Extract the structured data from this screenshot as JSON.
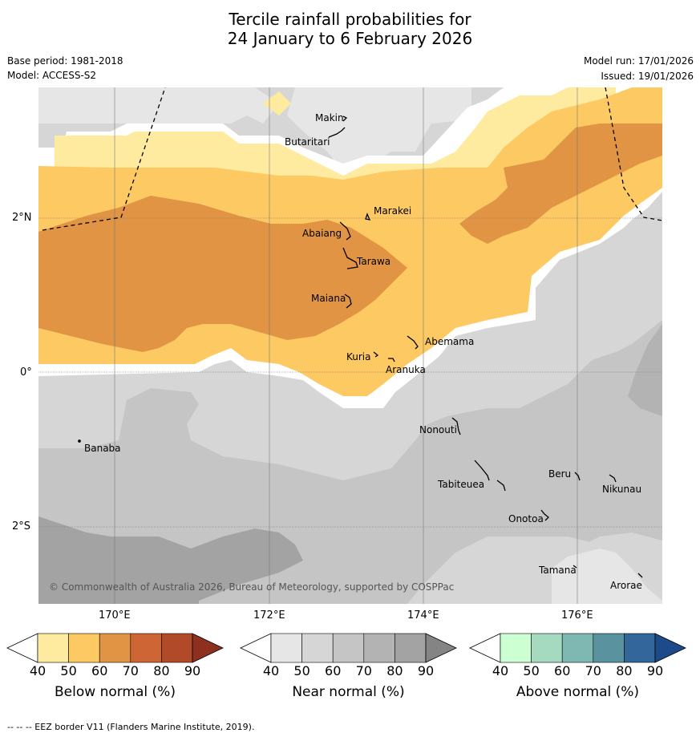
{
  "title_line1": "Tercile rainfall probabilities for",
  "title_line2": "24 January to 6 February 2026",
  "meta": {
    "base_period": "Base period: 1981-2018",
    "model": "Model: ACCESS-S2",
    "model_run": "Model run: 17/01/2026",
    "issued": "Issued: 19/01/2026"
  },
  "map": {
    "lat_labels": [
      "2°N",
      "0°",
      "2°S"
    ],
    "lon_labels": [
      "170°E",
      "172°E",
      "174°E",
      "176°E"
    ],
    "places": {
      "makin": "Makin",
      "butaritari": "Butaritari",
      "marakei": "Marakei",
      "abaiang": "Abaiang",
      "tarawa": "Tarawa",
      "maiana": "Maiana",
      "abemama": "Abemama",
      "kuria": "Kuria",
      "aranuka": "Aranuka",
      "nonouti": "Nonouti",
      "banaba": "Banaba",
      "beru": "Beru",
      "tabiteuea": "Tabiteuea",
      "nikunau": "Nikunau",
      "onotoa": "Onotoa",
      "tamana": "Tamana",
      "arorae": "Arorae"
    },
    "copyright": "© Commonwealth of Australia 2026, Bureau of Meteorology, supported by COSPPac"
  },
  "colorbars": {
    "ticks": [
      "40",
      "50",
      "60",
      "70",
      "80",
      "90"
    ],
    "below": {
      "title": "Below normal (%)",
      "colors": [
        "#ffffff",
        "#ffeb9f",
        "#fdc963",
        "#e09444",
        "#cd6535",
        "#b14a28",
        "#8e3020"
      ]
    },
    "near": {
      "title": "Near normal (%)",
      "colors": [
        "#ffffff",
        "#e6e6e6",
        "#d6d6d6",
        "#c5c5c5",
        "#b3b3b3",
        "#a3a3a3",
        "#848484"
      ]
    },
    "above": {
      "title": "Above normal (%)",
      "colors": [
        "#ffffff",
        "#ccffd2",
        "#a5d9c0",
        "#7fb8b2",
        "#5a92a0",
        "#336699",
        "#1e4a8a"
      ]
    }
  },
  "footnote": "--  --  -- EEZ border V11 (Flanders Marine Institute, 2019)."
}
